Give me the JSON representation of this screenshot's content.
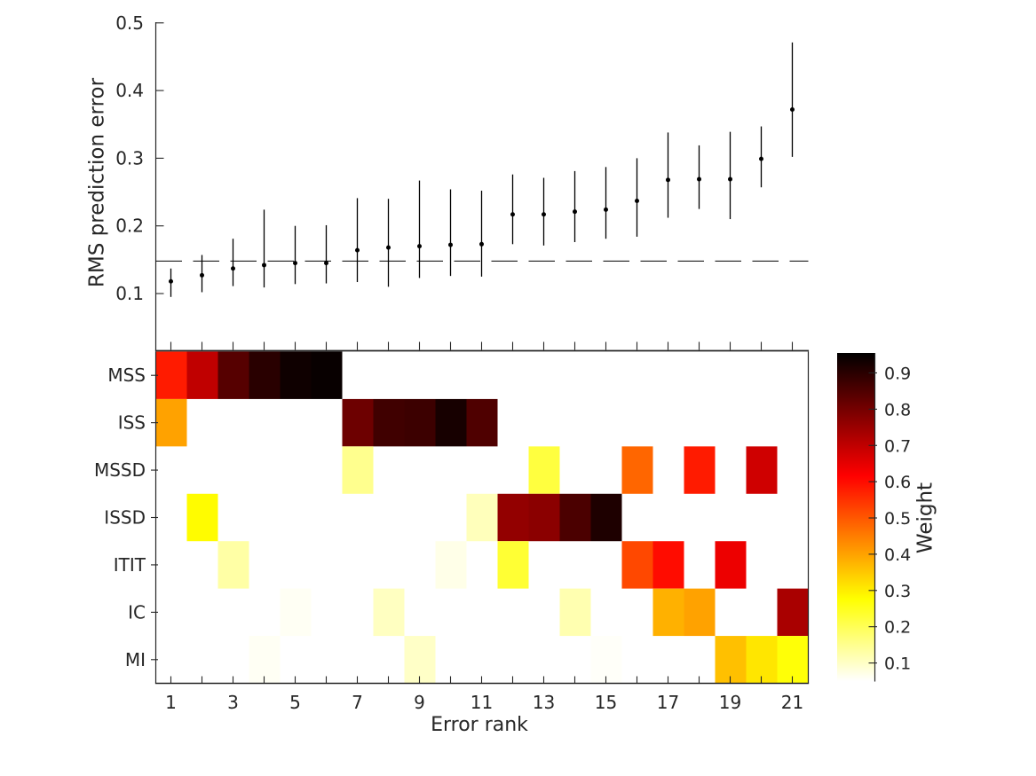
{
  "figure": {
    "background": "#ffffff",
    "axis_color": "#262626",
    "data_color": "#000000"
  },
  "chart_data": [
    {
      "type": "scatter",
      "subtype": "errorbar",
      "title": "",
      "xlabel": "",
      "ylabel": "RMS prediction error",
      "x": [
        1,
        2,
        3,
        4,
        5,
        6,
        7,
        8,
        9,
        10,
        11,
        12,
        13,
        14,
        15,
        16,
        17,
        18,
        19,
        20,
        21
      ],
      "mean": [
        0.118,
        0.127,
        0.137,
        0.142,
        0.145,
        0.145,
        0.164,
        0.168,
        0.17,
        0.172,
        0.173,
        0.217,
        0.217,
        0.221,
        0.224,
        0.237,
        0.268,
        0.269,
        0.269,
        0.299,
        0.372
      ],
      "err_lo": [
        0.095,
        0.102,
        0.111,
        0.109,
        0.114,
        0.115,
        0.117,
        0.11,
        0.123,
        0.126,
        0.125,
        0.173,
        0.171,
        0.176,
        0.181,
        0.184,
        0.212,
        0.225,
        0.21,
        0.257,
        0.302
      ],
      "err_hi": [
        0.137,
        0.157,
        0.181,
        0.224,
        0.2,
        0.201,
        0.241,
        0.24,
        0.267,
        0.254,
        0.252,
        0.276,
        0.271,
        0.281,
        0.287,
        0.3,
        0.338,
        0.319,
        0.339,
        0.347,
        0.471
      ],
      "dashed_reference_line_y": 0.148,
      "yticks": [
        0.1,
        0.2,
        0.3,
        0.4,
        0.5
      ],
      "ylim": [
        0.02,
        0.5
      ],
      "xlim": [
        0.5,
        21.5
      ],
      "grid": false,
      "marker": "dot",
      "line_color": "#000000"
    },
    {
      "type": "heatmap",
      "xlabel": "Error rank",
      "rows": [
        "MSS",
        "ISS",
        "MSSD",
        "ISSD",
        "ITIT",
        "IC",
        "MI"
      ],
      "x": [
        1,
        2,
        3,
        4,
        5,
        6,
        7,
        8,
        9,
        10,
        11,
        12,
        13,
        14,
        15,
        16,
        17,
        18,
        19,
        20,
        21
      ],
      "xtick_labels": [
        "1",
        "3",
        "5",
        "7",
        "9",
        "11",
        "13",
        "15",
        "17",
        "19",
        "21"
      ],
      "xtick_label_positions": [
        1,
        3,
        5,
        7,
        9,
        11,
        13,
        15,
        17,
        19,
        21
      ],
      "empty_value": 0,
      "values": [
        [
          0.58,
          0.7,
          0.84,
          0.9,
          0.935,
          0.945,
          0,
          0,
          0,
          0,
          0,
          0,
          0,
          0,
          0,
          0,
          0,
          0,
          0,
          0,
          0
        ],
        [
          0.4,
          0,
          0,
          0,
          0,
          0,
          0.81,
          0.87,
          0.875,
          0.925,
          0.85,
          0,
          0,
          0,
          0,
          0,
          0,
          0,
          0,
          0,
          0
        ],
        [
          0,
          0,
          0,
          0,
          0,
          0,
          0.15,
          0,
          0,
          0,
          0,
          0,
          0.22,
          0,
          0,
          0.48,
          0,
          0.58,
          0,
          0.68,
          0
        ],
        [
          0,
          0.28,
          0,
          0,
          0,
          0,
          0,
          0,
          0,
          0,
          0.11,
          0.76,
          0.77,
          0.855,
          0.915,
          0,
          0,
          0,
          0,
          0,
          0
        ],
        [
          0,
          0,
          0.13,
          0,
          0,
          0,
          0,
          0,
          0,
          0.07,
          0,
          0.23,
          0,
          0,
          0,
          0.52,
          0.6,
          0,
          0.64,
          0,
          0
        ],
        [
          0,
          0,
          0,
          0,
          0.06,
          0,
          0,
          0.105,
          0,
          0,
          0,
          0,
          0,
          0.12,
          0,
          0,
          0.38,
          0.4,
          0,
          0,
          0.73
        ],
        [
          0,
          0,
          0,
          0.06,
          0,
          0,
          0,
          0,
          0.1,
          0,
          0,
          0,
          0,
          0,
          0.055,
          0,
          0,
          0,
          0.36,
          0.31,
          0.27
        ]
      ],
      "colorbar": {
        "label": "Weight",
        "ticks": [
          0.1,
          0.2,
          0.3,
          0.4,
          0.5,
          0.6,
          0.7,
          0.8,
          0.9
        ],
        "vmin": 0.05,
        "vmax": 0.955,
        "colormap": "hot-reversed",
        "colormap_description": "white (low) -> yellow -> orange -> red -> dark red -> black (high)"
      }
    }
  ]
}
